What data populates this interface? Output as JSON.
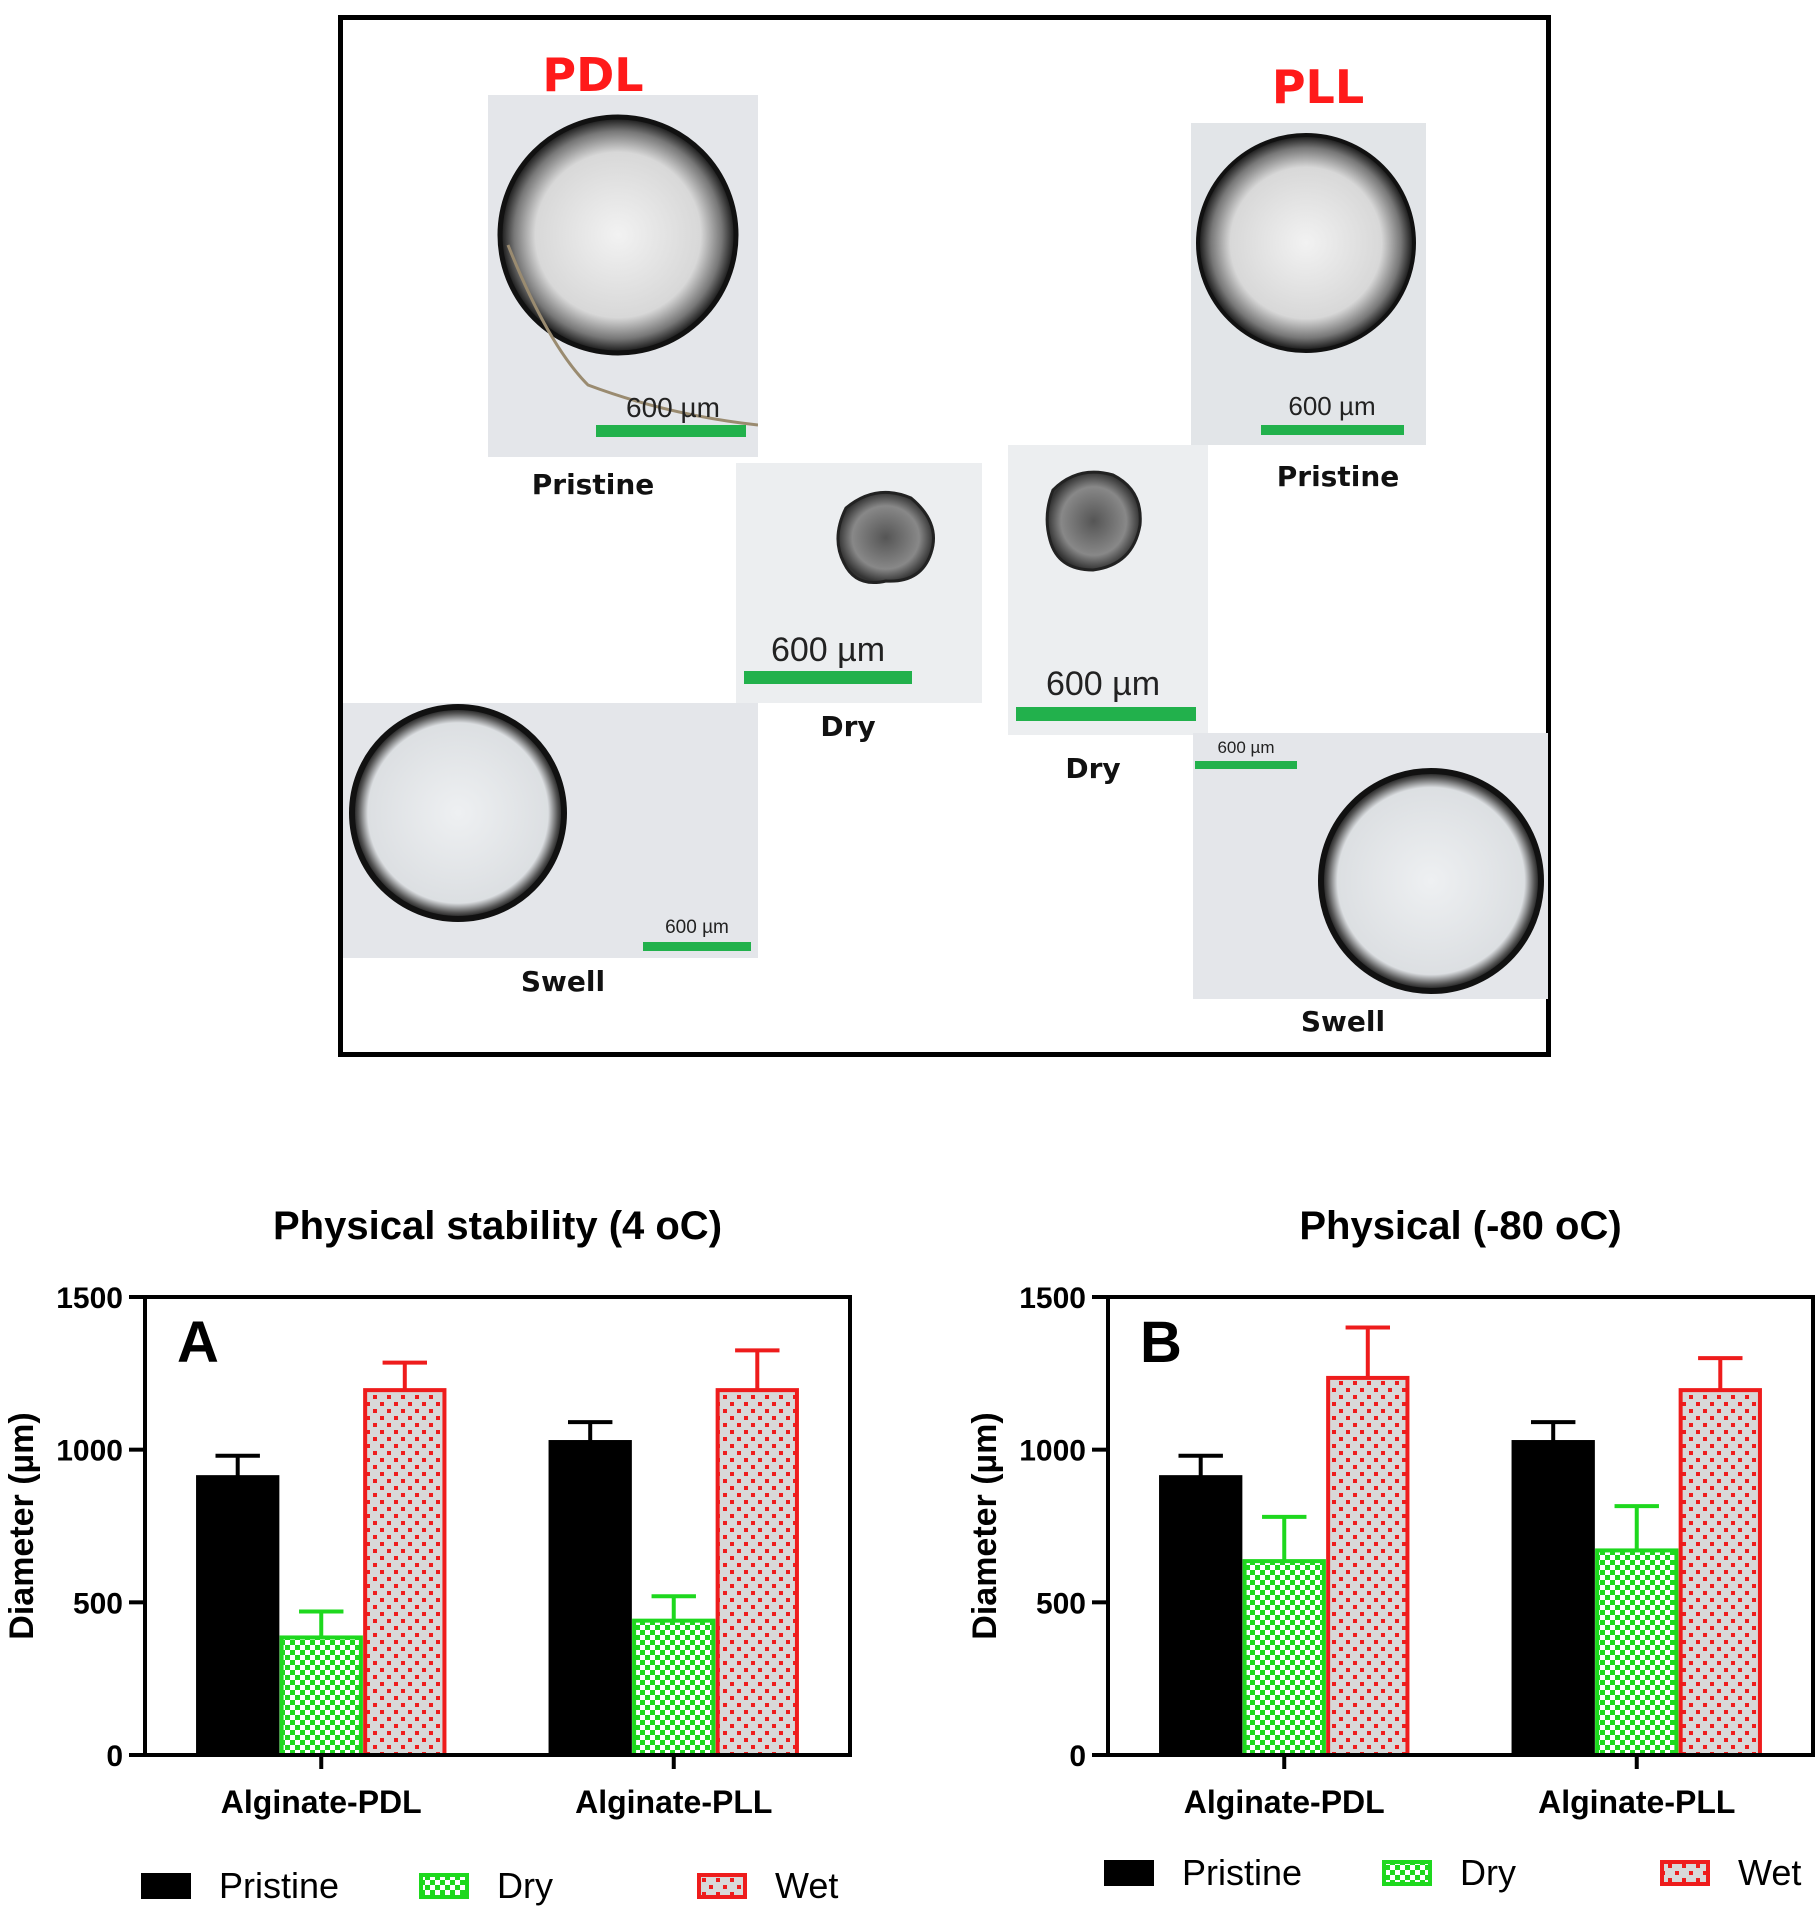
{
  "figure": {
    "micrographs": {
      "groups": [
        {
          "name": "PDL",
          "color": "#ff1a1a"
        },
        {
          "name": "PLL",
          "color": "#ff1a1a"
        }
      ],
      "tiles": [
        {
          "group": "PDL",
          "caption": "Pristine",
          "scale_label": "600 µm"
        },
        {
          "group": "PDL",
          "caption": "Dry",
          "scale_label": "600 µm"
        },
        {
          "group": "PDL",
          "caption": "Swell",
          "scale_label": "600 µm"
        },
        {
          "group": "PLL",
          "caption": "Pristine",
          "scale_label": "600 µm"
        },
        {
          "group": "PLL",
          "caption": "Dry",
          "scale_label": "600 µm"
        },
        {
          "group": "PLL",
          "caption": "Swell",
          "scale_label": "600 µm"
        }
      ],
      "scale_bar_color": "#22b14c"
    }
  },
  "chart_data": [
    {
      "type": "bar",
      "title": "Physical stability (4 oC)",
      "panel_letter": "A",
      "xlabel": "",
      "ylabel": "Diameter (µm)",
      "ylim": [
        0,
        1500
      ],
      "yticks": [
        "0",
        "500",
        "1000",
        "1500"
      ],
      "categories": [
        "Alginate-PDL",
        "Alginate-PLL"
      ],
      "series": [
        {
          "name": "Pristine",
          "values": [
            910,
            1025
          ],
          "errors": [
            70,
            65
          ],
          "color": "#000000",
          "pattern": "solid"
        },
        {
          "name": "Dry",
          "values": [
            385,
            440
          ],
          "errors": [
            85,
            80
          ],
          "color": "#1ed81e",
          "pattern": "checker"
        },
        {
          "name": "Wet",
          "values": [
            1195,
            1195
          ],
          "errors": [
            90,
            130
          ],
          "color": "#ee1c1c",
          "pattern": "dots"
        }
      ],
      "legend_position": "bottom",
      "grid": false
    },
    {
      "type": "bar",
      "title": "Physical (-80 oC)",
      "panel_letter": "B",
      "xlabel": "",
      "ylabel": "Diameter (µm)",
      "ylim": [
        0,
        1500
      ],
      "yticks": [
        "0",
        "500",
        "1000",
        "1500"
      ],
      "categories": [
        "Alginate-PDL",
        "Alginate-PLL"
      ],
      "series": [
        {
          "name": "Pristine",
          "values": [
            910,
            1025
          ],
          "errors": [
            70,
            65
          ],
          "color": "#000000",
          "pattern": "solid"
        },
        {
          "name": "Dry",
          "values": [
            635,
            670
          ],
          "errors": [
            145,
            145
          ],
          "color": "#1ed81e",
          "pattern": "checker"
        },
        {
          "name": "Wet",
          "values": [
            1235,
            1195
          ],
          "errors": [
            165,
            105
          ],
          "color": "#ee1c1c",
          "pattern": "dots"
        }
      ],
      "legend_position": "bottom",
      "grid": false
    }
  ]
}
